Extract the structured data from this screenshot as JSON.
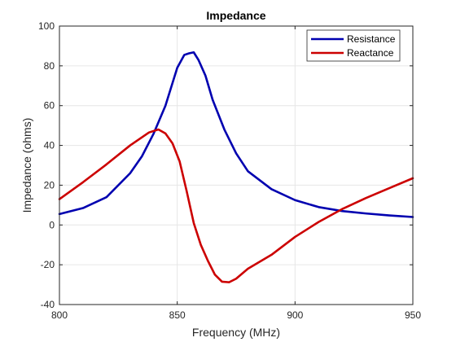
{
  "chart_data": {
    "type": "line",
    "title": "Impedance",
    "xlabel": "Frequency (MHz)",
    "ylabel": "Impedance (ohms)",
    "xlim": [
      800,
      950
    ],
    "ylim": [
      -40,
      100
    ],
    "xticks": [
      800,
      850,
      900,
      950
    ],
    "yticks": [
      -40,
      -20,
      0,
      20,
      40,
      60,
      80,
      100
    ],
    "grid": true,
    "legend_position": "top-right",
    "series": [
      {
        "name": "Resistance",
        "color": "#0000b0",
        "x": [
          800,
          810,
          820,
          830,
          835,
          840,
          845,
          850,
          853,
          855,
          857,
          859,
          862,
          865,
          870,
          875,
          880,
          890,
          900,
          910,
          920,
          930,
          940,
          950
        ],
        "y": [
          5.5,
          8.5,
          14,
          26,
          34.5,
          46,
          60,
          79,
          85.5,
          86.3,
          86.8,
          83,
          75,
          63,
          48,
          36,
          27,
          18,
          12.5,
          9,
          7,
          5.8,
          4.8,
          4
        ]
      },
      {
        "name": "Reactance",
        "color": "#cc0000",
        "x": [
          800,
          810,
          820,
          830,
          838,
          842,
          845,
          848,
          851,
          854,
          857,
          860,
          863,
          866,
          869,
          872,
          875,
          880,
          890,
          900,
          910,
          920,
          930,
          940,
          950
        ],
        "y": [
          13,
          21.5,
          30.5,
          40,
          46.5,
          48,
          46,
          41,
          32,
          17,
          1,
          -10,
          -18,
          -25,
          -28.5,
          -28.8,
          -27,
          -22,
          -15,
          -6,
          1.5,
          8,
          13.5,
          18.5,
          23.5
        ]
      }
    ]
  }
}
